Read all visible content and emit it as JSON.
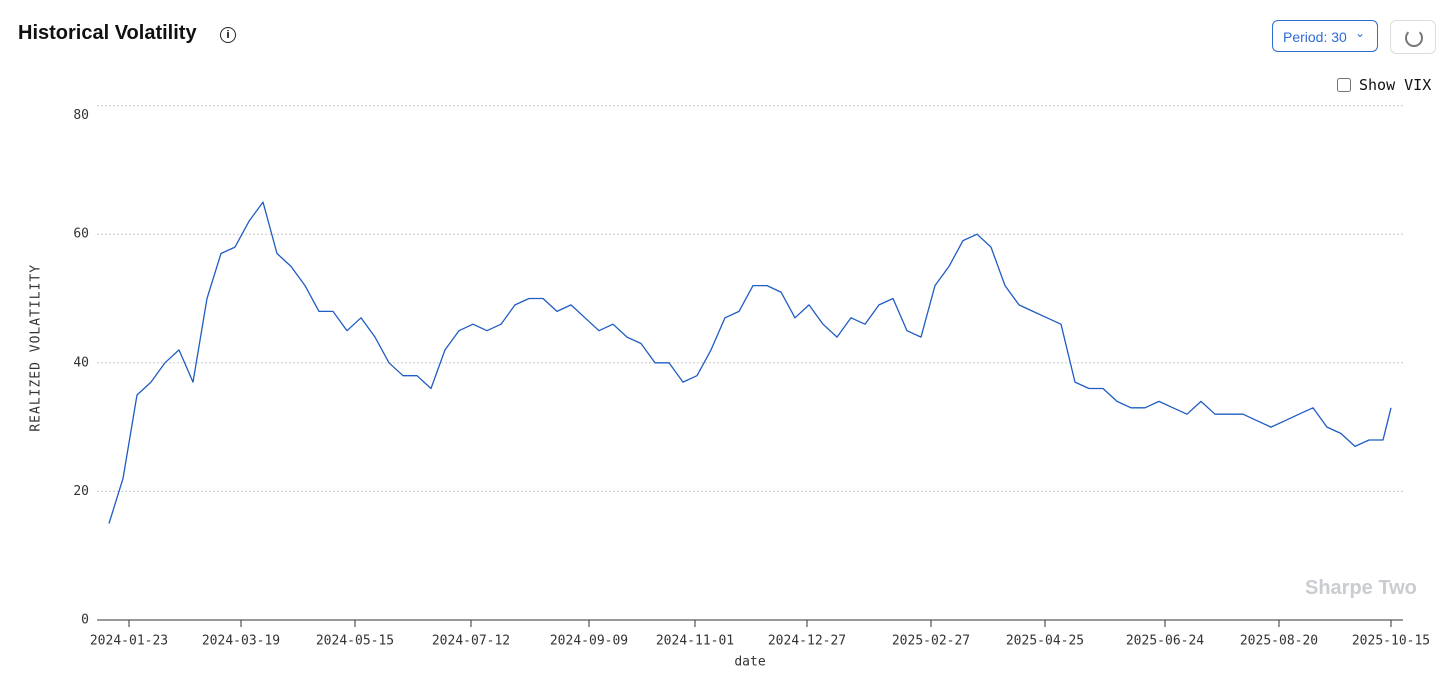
{
  "chart_data": {
    "type": "line",
    "title": "Historical Volatility",
    "controls": {
      "period": "Period: 30",
      "toggle": "Show VIX"
    },
    "watermark": "Sharpe Two",
    "xlabel": "date",
    "ylabel": "REALIZED VOLATILITY",
    "x": [
      "2024-01-13",
      "2024-01-20",
      "2024-01-27",
      "2024-02-03",
      "2024-02-10",
      "2024-02-17",
      "2024-02-24",
      "2024-03-02",
      "2024-03-09",
      "2024-03-16",
      "2024-03-23",
      "2024-03-30",
      "2024-04-06",
      "2024-04-13",
      "2024-04-20",
      "2024-04-27",
      "2024-05-04",
      "2024-05-11",
      "2024-05-18",
      "2024-05-25",
      "2024-06-01",
      "2024-06-08",
      "2024-06-15",
      "2024-06-22",
      "2024-06-29",
      "2024-07-06",
      "2024-07-13",
      "2024-07-20",
      "2024-07-27",
      "2024-08-03",
      "2024-08-10",
      "2024-08-17",
      "2024-08-24",
      "2024-08-31",
      "2024-09-07",
      "2024-09-14",
      "2024-09-21",
      "2024-09-28",
      "2024-10-05",
      "2024-10-12",
      "2024-10-19",
      "2024-10-26",
      "2024-11-02",
      "2024-11-09",
      "2024-11-16",
      "2024-11-23",
      "2024-11-30",
      "2024-12-07",
      "2024-12-14",
      "2024-12-21",
      "2024-12-28",
      "2025-01-04",
      "2025-01-11",
      "2025-01-18",
      "2025-01-25",
      "2025-02-01",
      "2025-02-08",
      "2025-02-15",
      "2025-02-22",
      "2025-03-01",
      "2025-03-08",
      "2025-03-15",
      "2025-03-22",
      "2025-03-29",
      "2025-04-05",
      "2025-04-12",
      "2025-04-19",
      "2025-04-26",
      "2025-05-03",
      "2025-05-10",
      "2025-05-17",
      "2025-05-24",
      "2025-05-31",
      "2025-06-07",
      "2025-06-14",
      "2025-06-21",
      "2025-06-28",
      "2025-07-05",
      "2025-07-12",
      "2025-07-19",
      "2025-07-26",
      "2025-08-02",
      "2025-08-09",
      "2025-08-16",
      "2025-08-23",
      "2025-08-30",
      "2025-09-06",
      "2025-09-13",
      "2025-09-20",
      "2025-09-27",
      "2025-10-04",
      "2025-10-11",
      "2025-10-15"
    ],
    "series": [
      {
        "name": "REALIZED VOLATILITY",
        "color": "#1f5cc4",
        "values": [
          15,
          22,
          35,
          37,
          40,
          42,
          37,
          50,
          57,
          58,
          62,
          65,
          57,
          55,
          52,
          48,
          48,
          45,
          47,
          44,
          40,
          38,
          38,
          36,
          42,
          45,
          46,
          45,
          46,
          49,
          50,
          50,
          48,
          49,
          47,
          45,
          46,
          44,
          43,
          40,
          40,
          37,
          38,
          42,
          47,
          48,
          52,
          52,
          51,
          47,
          49,
          46,
          44,
          47,
          46,
          49,
          50,
          45,
          44,
          52,
          55,
          59,
          60,
          58,
          52,
          49,
          48,
          47,
          46,
          37,
          36,
          36,
          34,
          33,
          33,
          34,
          33,
          32,
          34,
          32,
          32,
          32,
          31,
          30,
          31,
          32,
          33,
          30,
          29,
          27,
          28,
          28,
          33
        ]
      }
    ],
    "xlim": [
      "2024-01-07",
      "2025-10-21"
    ],
    "xticks": [
      "2024-01-23",
      "2024-03-19",
      "2024-05-15",
      "2024-07-12",
      "2024-09-09",
      "2024-11-01",
      "2024-12-27",
      "2025-02-27",
      "2025-04-25",
      "2025-06-24",
      "2025-08-20",
      "2025-10-15"
    ],
    "ylim": [
      0,
      80
    ],
    "yticks": [
      0,
      20,
      40,
      60,
      80
    ],
    "grid": true
  }
}
